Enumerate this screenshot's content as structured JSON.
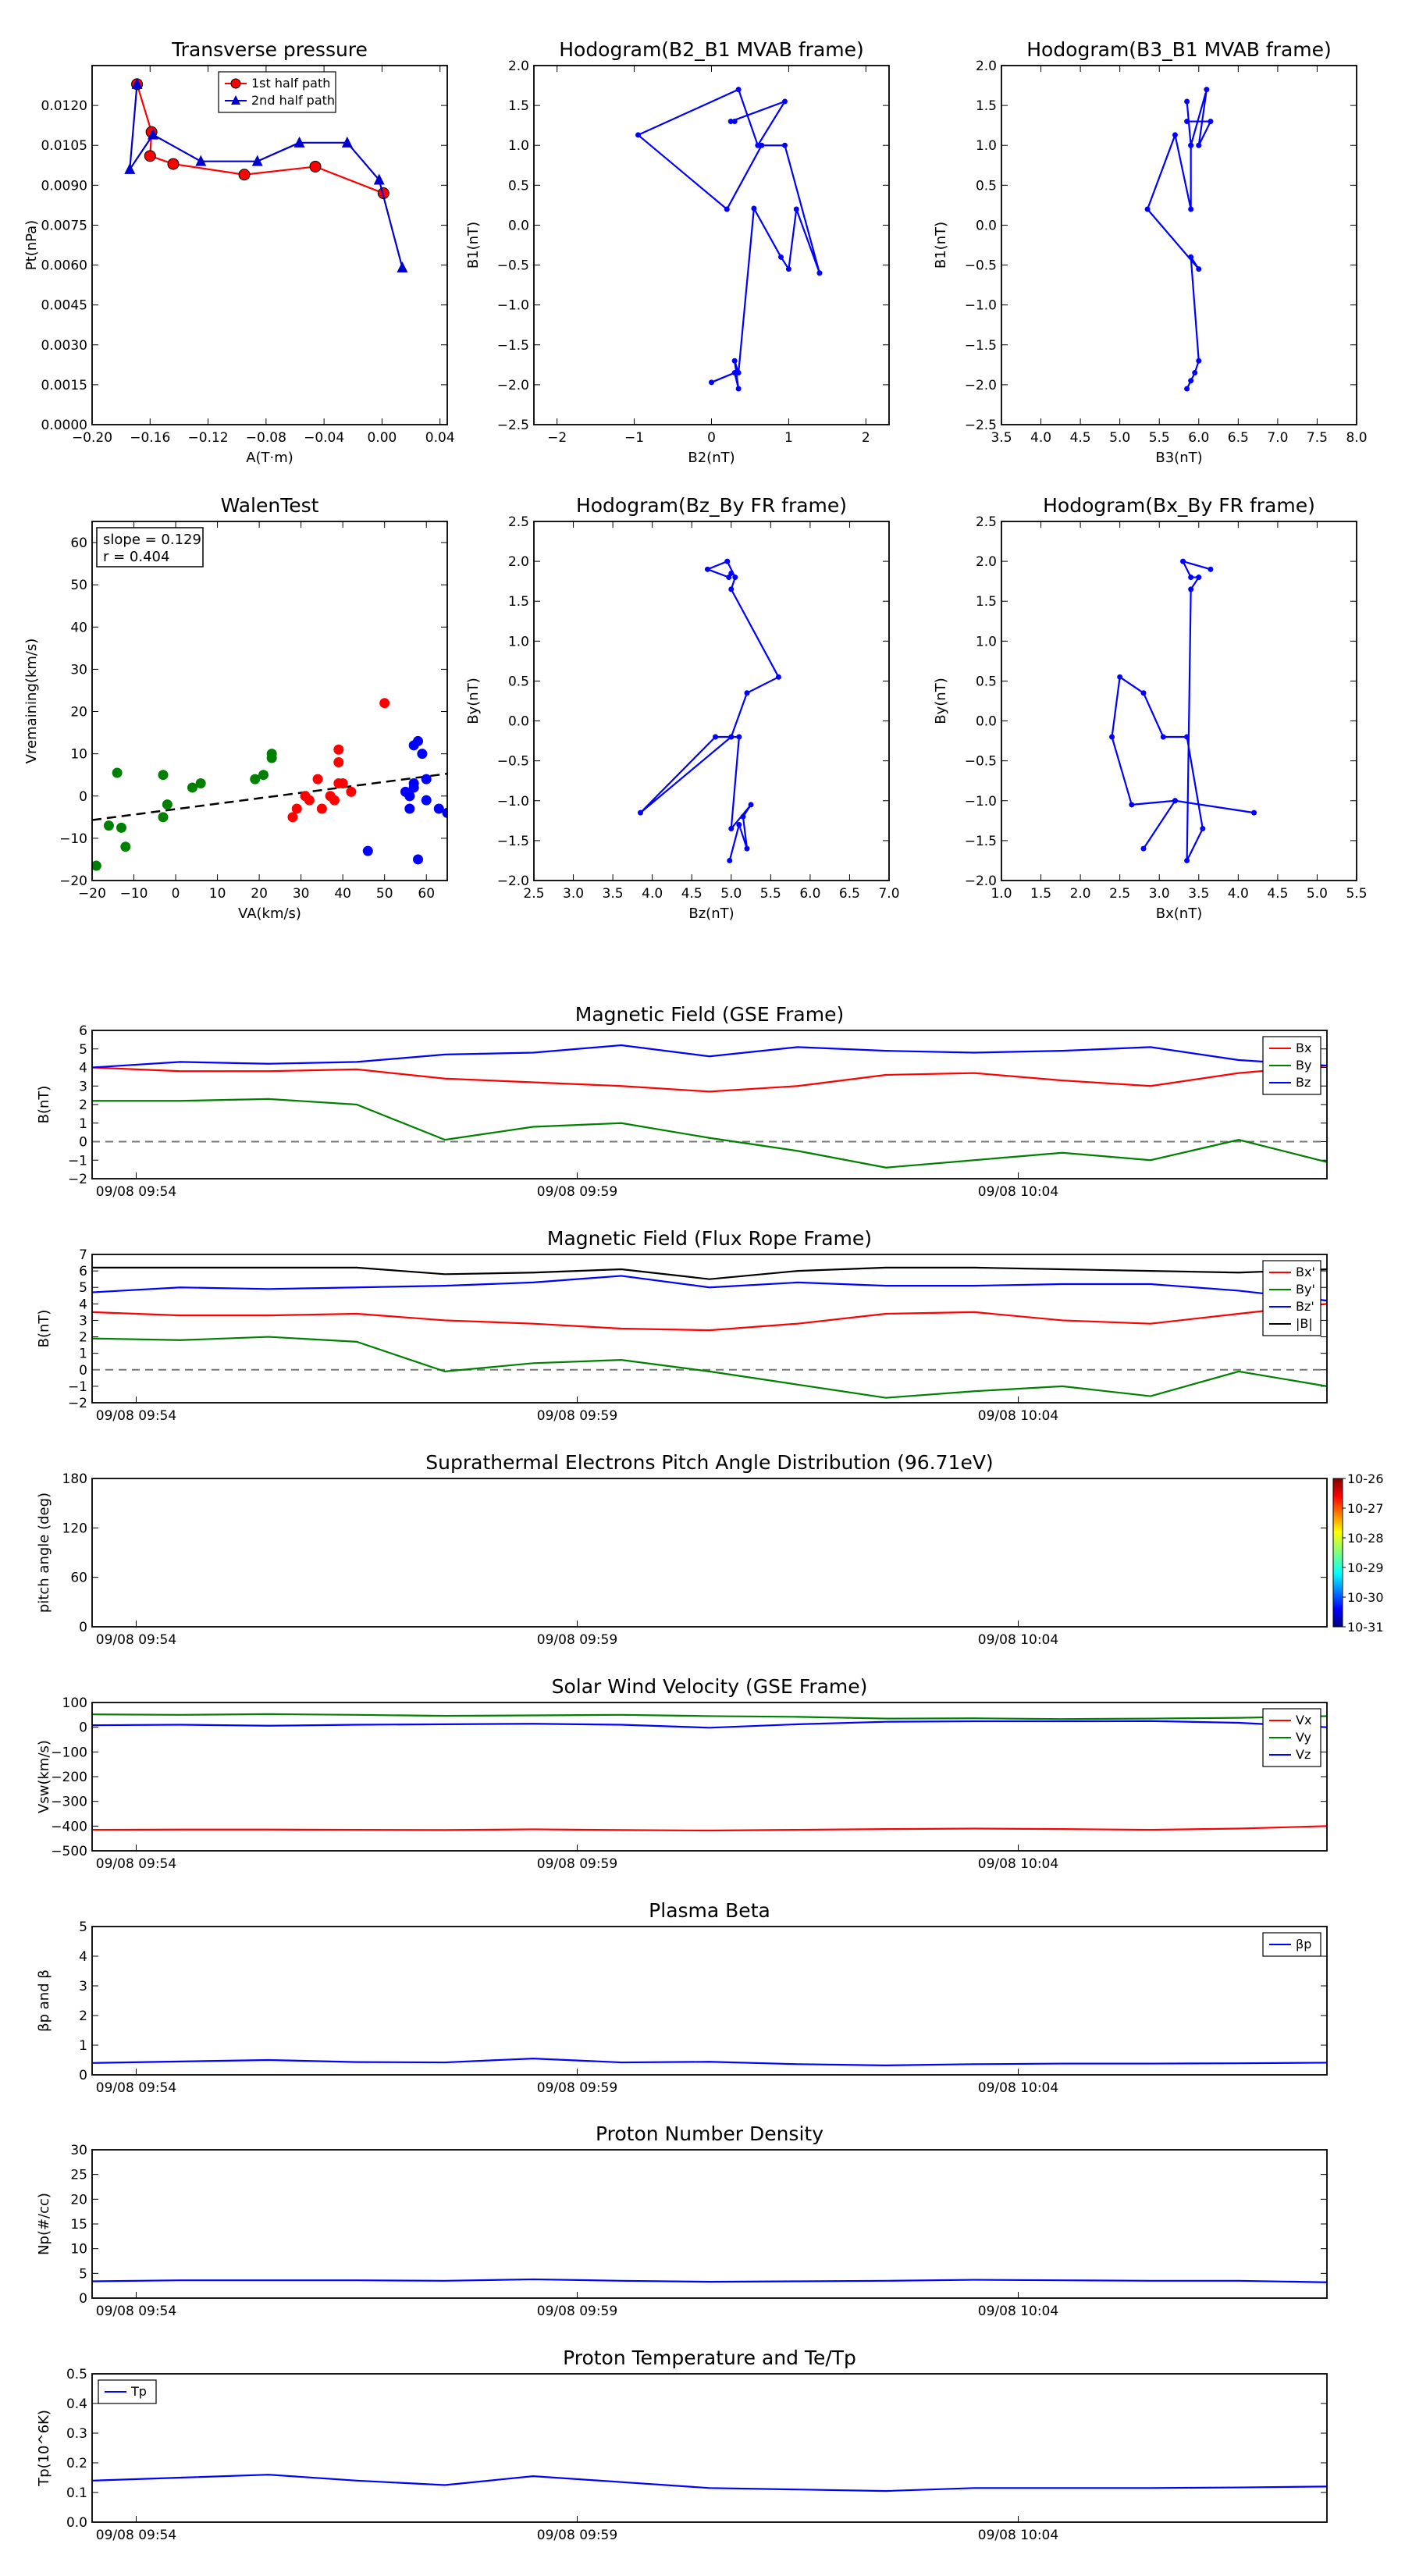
{
  "chart_data": [
    {
      "id": "tp",
      "type": "line",
      "title": "Transverse pressure",
      "xlabel": "A(T·m)",
      "ylabel": "Pt(nPa)",
      "xlim": [
        -0.2,
        0.045
      ],
      "ylim": [
        0,
        0.0135
      ],
      "xticks": [
        "−0.20",
        "−0.16",
        "−0.12",
        "−0.08",
        "−0.04",
        "0.00",
        "0.04"
      ],
      "yticks": [
        "0.0000",
        "0.0015",
        "0.0030",
        "0.0045",
        "0.0060",
        "0.0075",
        "0.0090",
        "0.0105",
        "0.0120"
      ],
      "legend_position": "upper-center",
      "series": [
        {
          "name": "1st half path",
          "color": "#ff0000",
          "marker": "circle",
          "x": [
            -0.169,
            -0.159,
            -0.16,
            -0.144,
            -0.095,
            -0.046,
            0.001
          ],
          "y": [
            0.0128,
            0.011,
            0.0101,
            0.0098,
            0.0094,
            0.0097,
            0.0087
          ]
        },
        {
          "name": "2nd half path",
          "color": "#0000cc",
          "marker": "triangle",
          "x": [
            -0.169,
            -0.174,
            -0.158,
            -0.125,
            -0.086,
            -0.057,
            -0.024,
            -0.002,
            0.014
          ],
          "y": [
            0.0128,
            0.0096,
            0.0109,
            0.0099,
            0.0099,
            0.0106,
            0.0106,
            0.0092,
            0.0059
          ]
        }
      ]
    },
    {
      "id": "h1",
      "type": "line",
      "title": "Hodogram(B2_B1 MVAB frame)",
      "xlabel": "B2(nT)",
      "ylabel": "B1(nT)",
      "xlim": [
        -2.3,
        2.3
      ],
      "ylim": [
        -2.5,
        2.0
      ],
      "xticks": [
        "−2",
        "−1",
        "0",
        "1",
        "2"
      ],
      "xtickvals": [
        -2,
        -1,
        0,
        1,
        2
      ],
      "yticks": [
        "−2.5",
        "−2.0",
        "−1.5",
        "−1.0",
        "−0.5",
        "0.0",
        "0.5",
        "1.0",
        "1.5",
        "2.0"
      ],
      "series": [
        {
          "color": "#0000ff",
          "x": [
            -0.0,
            0.3,
            0.35,
            0.3,
            0.35,
            0.55,
            0.9,
            1.0,
            1.1,
            1.4,
            0.95,
            0.65,
            0.2,
            -0.95,
            0.35,
            0.6,
            0.95,
            0.25,
            0.3
          ],
          "y": [
            -1.97,
            -1.85,
            -2.05,
            -1.7,
            -1.85,
            0.21,
            -0.4,
            -0.55,
            0.2,
            -0.6,
            1.0,
            1.0,
            0.2,
            1.13,
            1.7,
            1.0,
            1.55,
            1.3,
            1.3
          ]
        }
      ]
    },
    {
      "id": "h2",
      "type": "line",
      "title": "Hodogram(B3_B1 MVAB frame)",
      "xlabel": "B3(nT)",
      "ylabel": "B1(nT)",
      "xlim": [
        3.5,
        8.0
      ],
      "ylim": [
        -2.5,
        2.0
      ],
      "xticks": [
        "3.5",
        "4.0",
        "4.5",
        "5.0",
        "5.5",
        "6.0",
        "6.5",
        "7.0",
        "7.5",
        "8.0"
      ],
      "yticks": [
        "−2.5",
        "−2.0",
        "−1.5",
        "−1.0",
        "−0.5",
        "0.0",
        "0.5",
        "1.0",
        "1.5",
        "2.0"
      ],
      "series": [
        {
          "color": "#0000ff",
          "x": [
            5.85,
            5.9,
            5.95,
            6.0,
            5.9,
            6.0,
            5.35,
            5.7,
            5.9,
            5.9,
            5.85,
            5.9,
            6.1,
            6.0,
            6.15,
            5.85
          ],
          "y": [
            -2.05,
            -1.95,
            -1.85,
            -1.7,
            -0.4,
            -0.55,
            0.2,
            1.13,
            0.2,
            1.0,
            1.55,
            1.0,
            1.7,
            1.0,
            1.3,
            1.3
          ]
        }
      ]
    },
    {
      "id": "wt",
      "type": "scatter",
      "title": "WalenTest",
      "xlabel": "VA(km/s)",
      "ylabel": "Vremaining(km/s)",
      "xlim": [
        -20,
        65
      ],
      "ylim": [
        -20,
        65
      ],
      "xticks": [
        "−20",
        "−10",
        "0",
        "10",
        "20",
        "30",
        "40",
        "50",
        "60"
      ],
      "xtickvals": [
        -20,
        -10,
        0,
        10,
        20,
        30,
        40,
        50,
        60
      ],
      "yticks": [
        "−20",
        "−10",
        "0",
        "10",
        "20",
        "30",
        "40",
        "50",
        "60"
      ],
      "annotation": [
        "slope = 0.129",
        "r = 0.404"
      ],
      "fit": {
        "slope": 0.129,
        "intercept": -3.1,
        "color": "#000000"
      },
      "series": [
        {
          "color": "#008000",
          "x": [
            -19,
            -16,
            -14,
            -13,
            -12,
            -3,
            -3,
            -2,
            4,
            6,
            19,
            21,
            23,
            23
          ],
          "y": [
            -16.5,
            -7,
            5.5,
            -7.5,
            -12,
            5,
            -5,
            -2,
            2,
            3,
            4,
            5,
            9,
            10
          ]
        },
        {
          "color": "#ff0000",
          "x": [
            28,
            29,
            31,
            32,
            34,
            35,
            37,
            38,
            39,
            39,
            40,
            42,
            50,
            39
          ],
          "y": [
            -5,
            -3,
            0,
            -1,
            4,
            -3,
            0,
            -1,
            11,
            8,
            3,
            1,
            22,
            3
          ]
        },
        {
          "color": "#0000ff",
          "x": [
            46,
            55,
            56,
            56,
            57,
            57,
            58,
            58,
            59,
            60,
            60,
            63,
            65,
            56,
            57
          ],
          "y": [
            -13,
            1,
            -3,
            0,
            12,
            2,
            -15,
            13,
            10,
            4,
            -1,
            -3,
            -4,
            0,
            3
          ]
        }
      ]
    },
    {
      "id": "h3",
      "type": "line",
      "title": "Hodogram(Bz_By FR frame)",
      "xlabel": "Bz(nT)",
      "ylabel": "By(nT)",
      "xlim": [
        2.5,
        7.0
      ],
      "ylim": [
        -2.0,
        2.5
      ],
      "xticks": [
        "2.5",
        "3.0",
        "3.5",
        "4.0",
        "4.5",
        "5.0",
        "5.5",
        "6.0",
        "6.5",
        "7.0"
      ],
      "yticks": [
        "−2.0",
        "−1.5",
        "−1.0",
        "−0.5",
        "0.0",
        "0.5",
        "1.0",
        "1.5",
        "2.0",
        "2.5"
      ],
      "series": [
        {
          "color": "#0000ff",
          "x": [
            4.98,
            5.1,
            5.2,
            5.15,
            5.25,
            5.0,
            5.1,
            4.8,
            3.85,
            5.0,
            5.2,
            5.6,
            5.0,
            5.05,
            4.95,
            4.7,
            4.97,
            5.0
          ],
          "y": [
            -1.75,
            -1.3,
            -1.6,
            -1.2,
            -1.05,
            -1.35,
            -0.2,
            -0.2,
            -1.15,
            -0.2,
            0.35,
            0.55,
            1.65,
            1.8,
            2.0,
            1.9,
            1.8,
            1.85
          ]
        }
      ]
    },
    {
      "id": "h4",
      "type": "line",
      "title": "Hodogram(Bx_By FR frame)",
      "xlabel": "Bx(nT)",
      "ylabel": "By(nT)",
      "xlim": [
        1.0,
        5.5
      ],
      "ylim": [
        -2.0,
        2.5
      ],
      "xticks": [
        "1.0",
        "1.5",
        "2.0",
        "2.5",
        "3.0",
        "3.5",
        "4.0",
        "4.5",
        "5.0",
        "5.5"
      ],
      "yticks": [
        "−2.0",
        "−1.5",
        "−1.0",
        "−0.5",
        "0.0",
        "0.5",
        "1.0",
        "1.5",
        "2.0",
        "2.5"
      ],
      "series": [
        {
          "color": "#0000ff",
          "x": [
            2.8,
            3.2,
            4.2,
            3.2,
            2.65,
            2.4,
            2.5,
            2.8,
            3.05,
            3.35,
            3.55,
            3.35,
            3.4,
            3.5,
            3.4,
            3.3,
            3.65
          ],
          "y": [
            -1.6,
            -1.0,
            -1.15,
            -1.0,
            -1.05,
            -0.2,
            0.55,
            0.35,
            -0.2,
            -0.2,
            -1.35,
            -1.75,
            1.65,
            1.8,
            1.8,
            2.0,
            1.9
          ]
        }
      ]
    },
    {
      "id": "ts1",
      "type": "line",
      "title": "Magnetic Field (GSE Frame)",
      "ylabel": "B(nT)",
      "xlim": [
        0,
        14
      ],
      "ylim": [
        -2,
        6
      ],
      "yticks": [
        "−2",
        "−1",
        "0",
        "1",
        "2",
        "3",
        "4",
        "5",
        "6"
      ],
      "ytickvals": [
        -2,
        -1,
        0,
        1,
        2,
        3,
        4,
        5,
        6
      ],
      "zero_line": true,
      "legend_position": "upper-right",
      "series": [
        {
          "name": "Bx",
          "color": "#ff0000",
          "y": [
            4.0,
            3.8,
            3.8,
            3.9,
            3.4,
            3.2,
            3.0,
            2.7,
            3.0,
            3.6,
            3.7,
            3.3,
            3.0,
            3.7,
            4.1
          ]
        },
        {
          "name": "By",
          "color": "#008000",
          "y": [
            2.2,
            2.2,
            2.3,
            2.0,
            0.1,
            0.8,
            1.0,
            0.2,
            -0.5,
            -1.4,
            -1.0,
            -0.6,
            -1.0,
            0.1,
            -1.1
          ]
        },
        {
          "name": "Bz",
          "color": "#0000ff",
          "y": [
            4.0,
            4.3,
            4.2,
            4.3,
            4.7,
            4.8,
            5.2,
            4.6,
            5.1,
            4.9,
            4.8,
            4.9,
            5.1,
            4.4,
            4.1
          ]
        }
      ]
    },
    {
      "id": "ts2",
      "type": "line",
      "title": "Magnetic Field (Flux Rope Frame)",
      "ylabel": "B(nT)",
      "xlim": [
        0,
        14
      ],
      "ylim": [
        -2,
        7
      ],
      "yticks": [
        "−2",
        "−1",
        "0",
        "1",
        "2",
        "3",
        "4",
        "5",
        "6",
        "7"
      ],
      "ytickvals": [
        -2,
        -1,
        0,
        1,
        2,
        3,
        4,
        5,
        6,
        7
      ],
      "zero_line": true,
      "legend_position": "upper-right",
      "series": [
        {
          "name": "Bx'",
          "color": "#ff0000",
          "y": [
            3.5,
            3.3,
            3.3,
            3.4,
            3.0,
            2.8,
            2.5,
            2.4,
            2.8,
            3.4,
            3.5,
            3.0,
            2.8,
            3.4,
            4.0
          ]
        },
        {
          "name": "By'",
          "color": "#008000",
          "y": [
            1.9,
            1.8,
            2.0,
            1.7,
            -0.1,
            0.4,
            0.6,
            -0.1,
            -0.9,
            -1.7,
            -1.3,
            -1.0,
            -1.6,
            -0.1,
            -1.0
          ]
        },
        {
          "name": "Bz'",
          "color": "#0000ff",
          "y": [
            4.7,
            5.0,
            4.9,
            5.0,
            5.1,
            5.3,
            5.7,
            5.0,
            5.3,
            5.1,
            5.1,
            5.2,
            5.2,
            4.8,
            4.2
          ]
        },
        {
          "name": "|B|",
          "color": "#000000",
          "y": [
            6.2,
            6.2,
            6.2,
            6.2,
            5.8,
            5.9,
            6.1,
            5.5,
            6.0,
            6.2,
            6.2,
            6.1,
            6.0,
            5.9,
            6.1
          ]
        }
      ]
    },
    {
      "id": "ts3",
      "type": "heatmap",
      "title": "Suprathermal Electrons Pitch Angle Distribution (96.71eV)",
      "ylabel": "pitch angle (deg)",
      "xlim": [
        0,
        14
      ],
      "ylim": [
        0,
        180
      ],
      "yticks": [
        "0",
        "60",
        "120",
        "180"
      ],
      "ytickvals": [
        0,
        60,
        120,
        180
      ],
      "colorbar_labels": [
        "10-26",
        "10-27",
        "10-28",
        "10-29",
        "10-30",
        "10-31"
      ]
    },
    {
      "id": "ts4",
      "type": "line",
      "title": "Solar Wind Velocity (GSE Frame)",
      "ylabel": "Vsw(km/s)",
      "xlim": [
        0,
        14
      ],
      "ylim": [
        -500,
        100
      ],
      "yticks": [
        "−500",
        "−400",
        "−300",
        "−200",
        "−100",
        "0",
        "100"
      ],
      "ytickvals": [
        -500,
        -400,
        -300,
        -200,
        -100,
        0,
        100
      ],
      "legend_position": "upper-right",
      "series": [
        {
          "name": "Vx",
          "color": "#ff0000",
          "y": [
            -415,
            -414,
            -414,
            -415,
            -416,
            -413,
            -416,
            -418,
            -415,
            -412,
            -410,
            -412,
            -415,
            -410,
            -400
          ]
        },
        {
          "name": "Vy",
          "color": "#008000",
          "y": [
            52,
            50,
            53,
            50,
            46,
            48,
            50,
            45,
            42,
            35,
            36,
            33,
            35,
            38,
            45
          ]
        },
        {
          "name": "Vz",
          "color": "#0000ff",
          "y": [
            8,
            10,
            6,
            10,
            12,
            14,
            10,
            -2,
            12,
            22,
            24,
            24,
            25,
            18,
            0
          ]
        }
      ]
    },
    {
      "id": "ts5",
      "type": "line",
      "title": "Plasma Beta",
      "ylabel": "βp and β",
      "xlim": [
        0,
        14
      ],
      "ylim": [
        0,
        5
      ],
      "yticks": [
        "0",
        "1",
        "2",
        "3",
        "4",
        "5"
      ],
      "ytickvals": [
        0,
        1,
        2,
        3,
        4,
        5
      ],
      "legend_position": "upper-right",
      "series": [
        {
          "name": "βp",
          "color": "#0000ff",
          "y": [
            0.4,
            0.45,
            0.5,
            0.43,
            0.42,
            0.55,
            0.42,
            0.44,
            0.36,
            0.32,
            0.36,
            0.38,
            0.38,
            0.39,
            0.41
          ]
        }
      ]
    },
    {
      "id": "ts6",
      "type": "line",
      "title": "Proton Number Density",
      "ylabel": "Np(#/cc)",
      "xlim": [
        0,
        14
      ],
      "ylim": [
        0,
        30
      ],
      "yticks": [
        "0",
        "5",
        "10",
        "15",
        "20",
        "25",
        "30"
      ],
      "ytickvals": [
        0,
        5,
        10,
        15,
        20,
        25,
        30
      ],
      "series": [
        {
          "color": "#0000ff",
          "y": [
            3.4,
            3.6,
            3.6,
            3.6,
            3.5,
            3.8,
            3.5,
            3.3,
            3.4,
            3.5,
            3.7,
            3.6,
            3.5,
            3.5,
            3.2
          ]
        }
      ]
    },
    {
      "id": "ts7",
      "type": "line",
      "title": "Proton Temperature and Te/Tp",
      "ylabel": "Tp(10^6K)",
      "xlim": [
        0,
        14
      ],
      "ylim": [
        0,
        0.5
      ],
      "yticks": [
        "0.0",
        "0.1",
        "0.2",
        "0.3",
        "0.4",
        "0.5"
      ],
      "ytickvals": [
        0,
        0.1,
        0.2,
        0.3,
        0.4,
        0.5
      ],
      "legend_position": "upper-left",
      "series": [
        {
          "name": "Tp",
          "color": "#0000ff",
          "y": [
            0.14,
            0.15,
            0.16,
            0.14,
            0.125,
            0.155,
            0.135,
            0.115,
            0.11,
            0.105,
            0.115,
            0.115,
            0.115,
            0.117,
            0.12
          ]
        }
      ]
    }
  ],
  "time_axis": {
    "labels": [
      "09/08 09:54",
      "09/08 09:59",
      "09/08 10:04"
    ],
    "positions": [
      0.5,
      5.5,
      10.5
    ]
  }
}
